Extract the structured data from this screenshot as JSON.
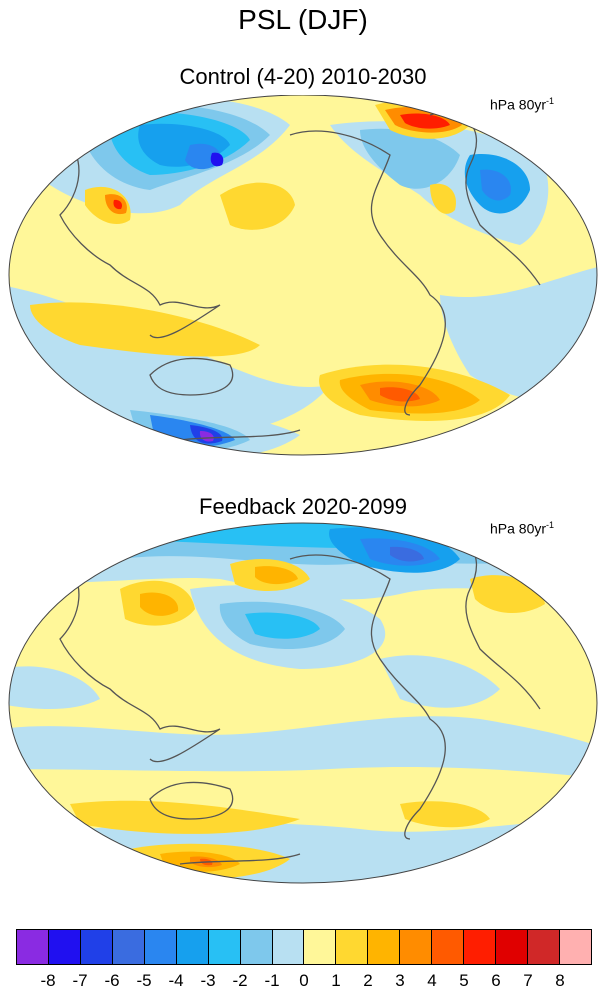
{
  "title": "PSL (DJF)",
  "panels": [
    {
      "title": "Control (4-20) 2010-2030",
      "units": "hPa 80yr",
      "units_exponent": "-1"
    },
    {
      "title": "Feedback 2020-2099",
      "units": "hPa 80yr",
      "units_exponent": "-1"
    }
  ],
  "colorbar": {
    "colors": [
      "#8a2be2",
      "#2010f0",
      "#2040e8",
      "#3a6ce0",
      "#2a86f0",
      "#16a0ee",
      "#28c0f4",
      "#7ec8ec",
      "#b8e0f2",
      "#fff799",
      "#ffd830",
      "#ffb400",
      "#ff8c00",
      "#ff5a00",
      "#ff1e00",
      "#e00000",
      "#d02828",
      "#ffb0b0"
    ],
    "labels": [
      "-8",
      "-7",
      "-6",
      "-5",
      "-4",
      "-3",
      "-2",
      "-1",
      "0",
      "1",
      "2",
      "3",
      "4",
      "5",
      "6",
      "7",
      "8"
    ]
  }
}
